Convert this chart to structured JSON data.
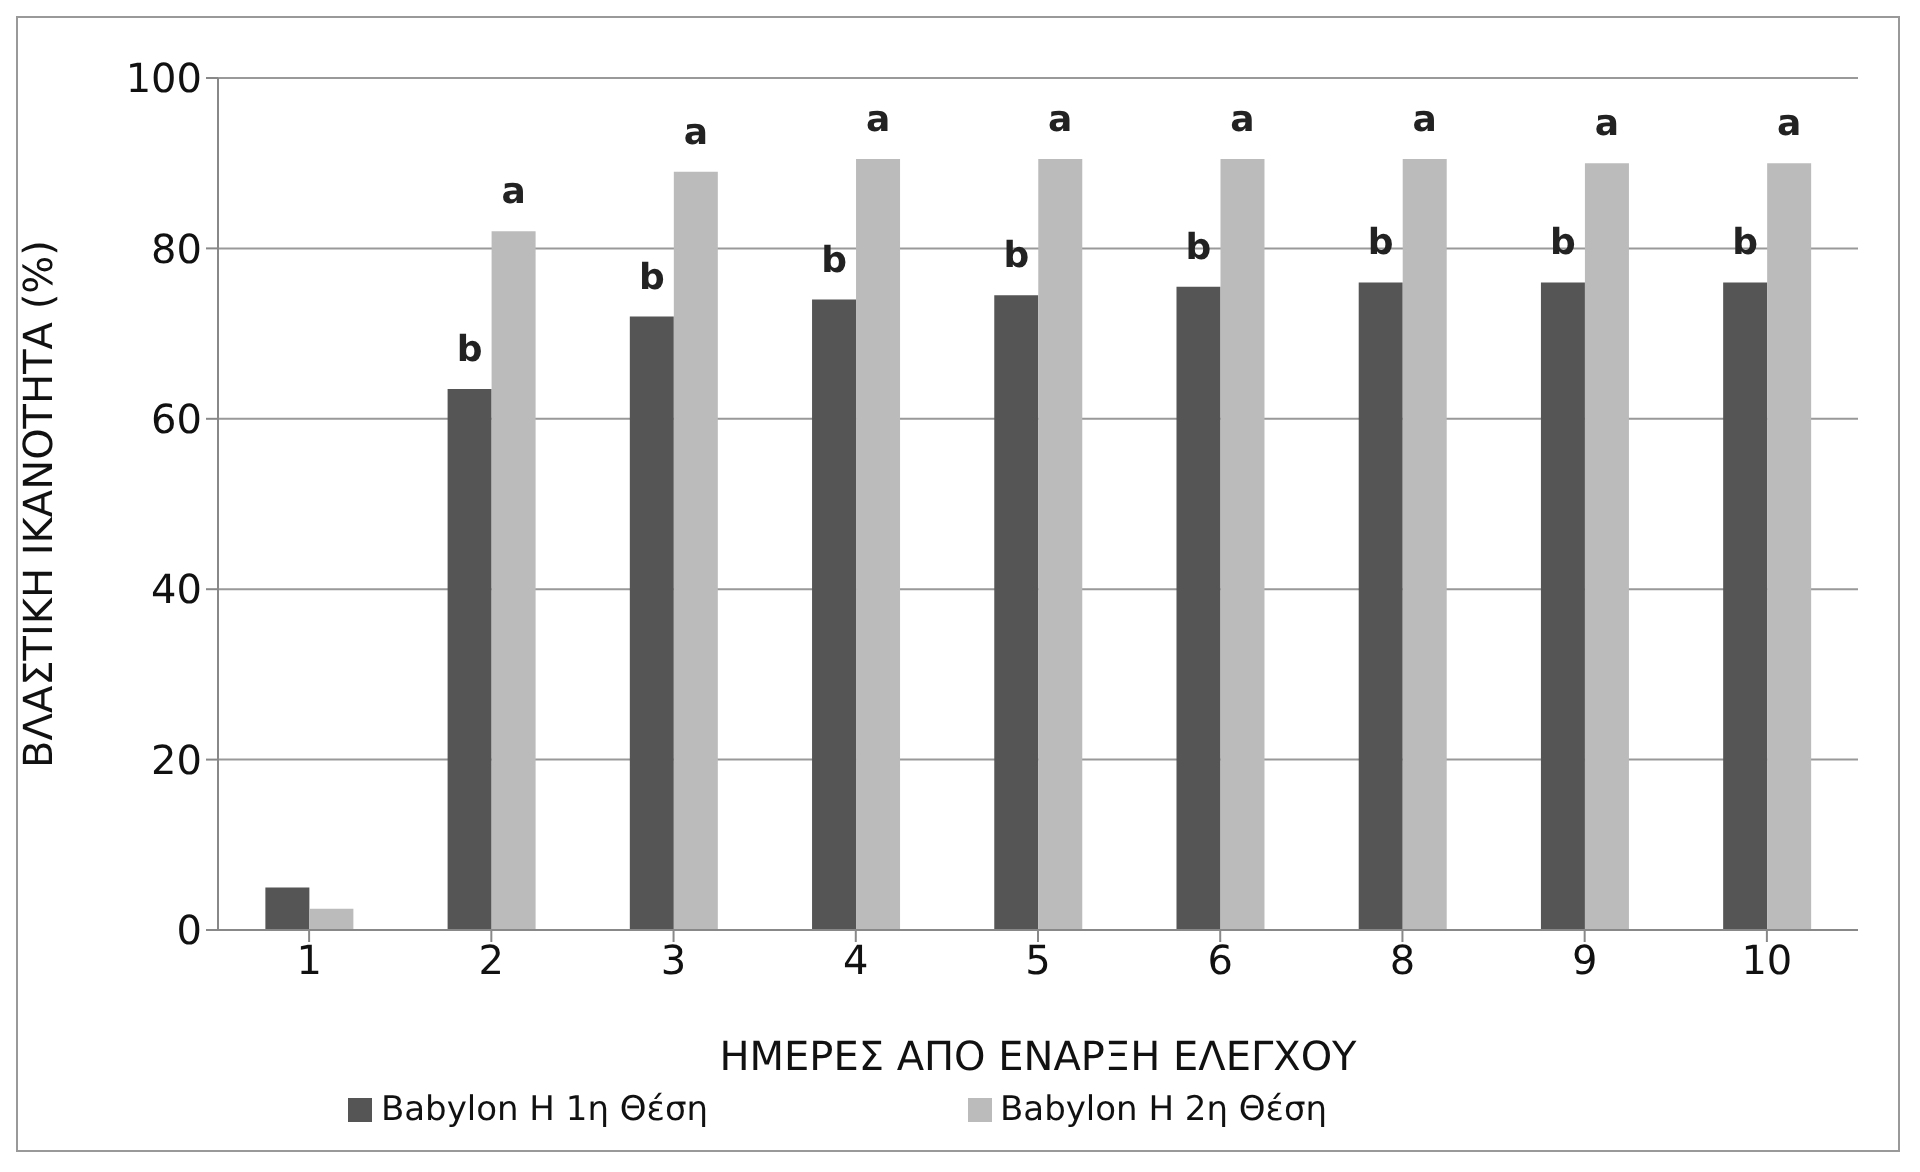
{
  "chart_data": {
    "type": "bar",
    "xlabel": "ΗΜΕΡΕΣ ΑΠΟ ΕΝΑΡΞΗ ΕΛΕΓΧΟΥ",
    "ylabel": "ΒΛΑΣΤΙΚΗ ΙΚΑΝΟΤΗΤΑ (%)",
    "categories": [
      "1",
      "2",
      "3",
      "4",
      "5",
      "6",
      "8",
      "9",
      "10"
    ],
    "series": [
      {
        "name": "Babylon H 1η Θέση",
        "color": "#555555",
        "values": [
          5,
          63.5,
          72,
          74,
          74.5,
          75.5,
          76,
          76,
          76
        ]
      },
      {
        "name": "Babylon H 2η Θέση",
        "color": "#bbbbbb",
        "values": [
          2.5,
          82,
          89,
          90.5,
          90.5,
          90.5,
          90.5,
          90,
          90
        ]
      }
    ],
    "ylim": [
      0,
      100
    ],
    "yticks": [
      0,
      20,
      40,
      60,
      80,
      100
    ],
    "grid": "y",
    "legend": "bottom",
    "annotations": [
      {
        "text": "b",
        "x": "2",
        "y": 63.5
      },
      {
        "text": "a",
        "x": "2",
        "y": 82
      },
      {
        "text": "b",
        "x": "3",
        "y": 72
      },
      {
        "text": "a",
        "x": "3",
        "y": 89
      },
      {
        "text": "b",
        "x": "4",
        "y": 74
      },
      {
        "text": "a",
        "x": "4",
        "y": 90.5
      },
      {
        "text": "b",
        "x": "5",
        "y": 74.5
      },
      {
        "text": "a",
        "x": "5",
        "y": 90.5
      },
      {
        "text": "b",
        "x": "6",
        "y": 75.5
      },
      {
        "text": "a",
        "x": "6",
        "y": 90.5
      },
      {
        "text": "b",
        "x": "8",
        "y": 76
      },
      {
        "text": "a",
        "x": "8",
        "y": 90.5
      },
      {
        "text": "b",
        "x": "9",
        "y": 76
      },
      {
        "text": "a",
        "x": "9",
        "y": 90
      },
      {
        "text": "b",
        "x": "10",
        "y": 76
      },
      {
        "text": "a",
        "x": "10",
        "y": 90
      }
    ]
  }
}
